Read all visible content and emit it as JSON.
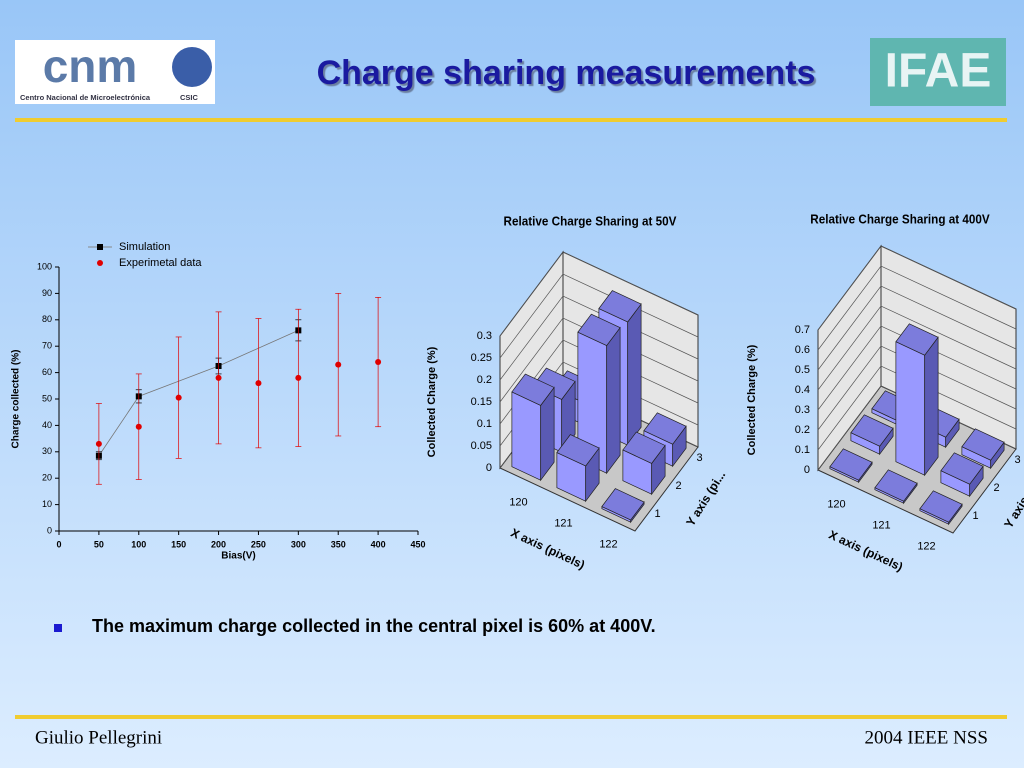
{
  "header": {
    "title": "Charge sharing measurements",
    "logo_left": "cnm",
    "logo_left_caption": "Centro Nacional de Microelectrónica",
    "logo_left_org": "CSIC",
    "logo_right": "IFAE"
  },
  "chart_data": [
    {
      "type": "scatter",
      "xlabel": "Bias(V)",
      "ylabel": "Charge collected (%)",
      "xlim": [
        0,
        450
      ],
      "xticks": [
        0,
        50,
        100,
        150,
        200,
        250,
        300,
        350,
        400,
        450
      ],
      "ylim": [
        0,
        100
      ],
      "yticks": [
        0,
        10,
        20,
        30,
        40,
        50,
        60,
        70,
        80,
        90,
        100
      ],
      "series": [
        {
          "name": "Simulation",
          "color": "#000000",
          "x": [
            50,
            100,
            200,
            300
          ],
          "values": [
            28.5,
            51,
            62.5,
            76
          ],
          "errors": [
            1.5,
            2.5,
            3,
            4
          ]
        },
        {
          "name": "Experimetal data",
          "color": "#e00000",
          "x": [
            50,
            100,
            150,
            200,
            250,
            300,
            350,
            400
          ],
          "values": [
            33,
            39.5,
            50.5,
            58,
            56,
            58,
            63,
            64
          ],
          "errors": [
            15.3,
            20,
            23,
            25,
            24.5,
            26,
            27,
            24.5
          ]
        }
      ]
    },
    {
      "type": "bar3d",
      "title": "Relative Charge Sharing at 50V",
      "zlabel": "Collected Charge (%)",
      "xlabel": "X axis (pixels)",
      "ylabel": "Y axis (pi...",
      "categories": [
        "120",
        "121",
        "122"
      ],
      "y_categories": [
        "1",
        "2",
        "3"
      ],
      "zlim": [
        0,
        0.3
      ],
      "zticks": [
        0,
        0.05,
        0.1,
        0.15,
        0.2,
        0.25,
        0.3
      ],
      "color": "#9999ff",
      "values": [
        [
          0.17,
          0.08,
          0.005
        ],
        [
          0.12,
          0.29,
          0.07
        ],
        [
          0.05,
          0.28,
          0.05
        ]
      ]
    },
    {
      "type": "bar3d",
      "title": "Relative Charge Sharing at 400V",
      "zlabel": "Collected Charge (%)",
      "xlabel": "X axis (pixels)",
      "ylabel": "Y axis (pi...",
      "categories": [
        "120",
        "121",
        "122"
      ],
      "y_categories": [
        "1",
        "2",
        "3"
      ],
      "zlim": [
        0,
        0.7
      ],
      "zticks": [
        0,
        0.1,
        0.2,
        0.3,
        0.4,
        0.5,
        0.6,
        0.7
      ],
      "color": "#9999ff",
      "values": [
        [
          0.01,
          0.01,
          0.01
        ],
        [
          0.04,
          0.6,
          0.06
        ],
        [
          0.02,
          0.05,
          0.04
        ]
      ]
    }
  ],
  "bullet": "The maximum charge collected in the central pixel is 60% at 400V.",
  "footer": {
    "left": "Giulio Pellegrini",
    "right": "2004 IEEE NSS"
  }
}
